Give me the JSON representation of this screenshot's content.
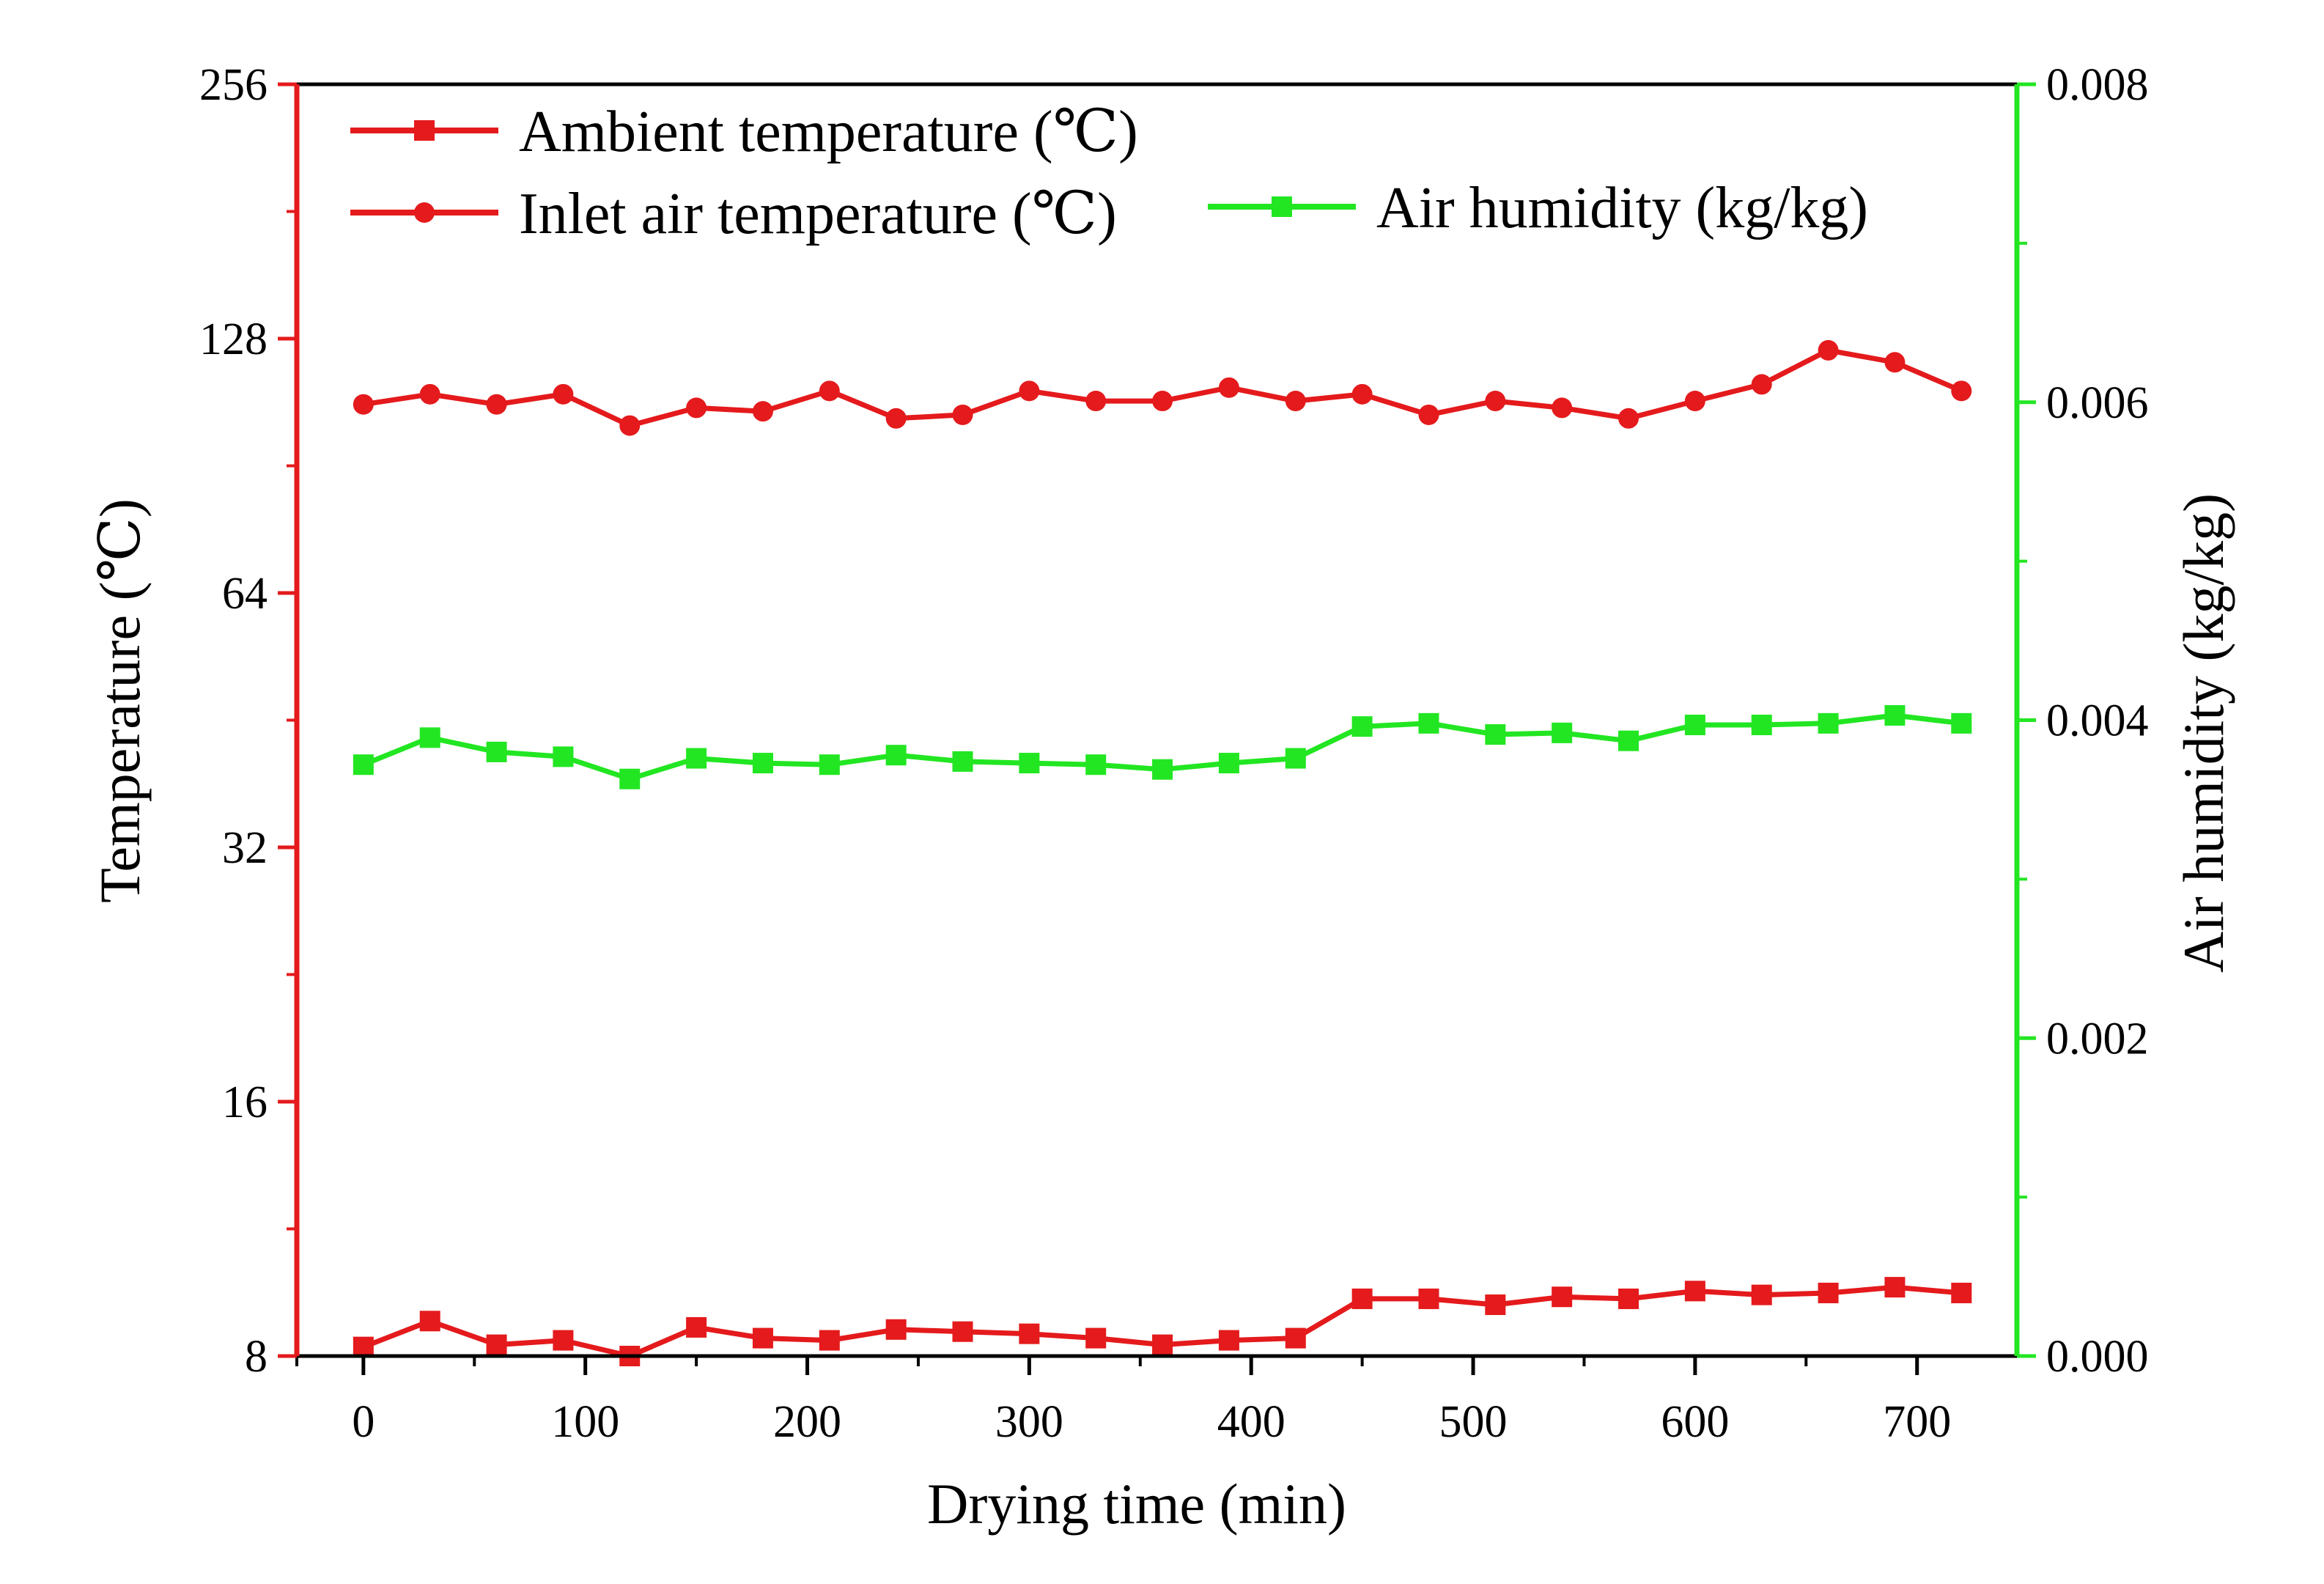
{
  "chart_data": {
    "type": "line",
    "xlabel": "Drying time (min)",
    "ylabel_left": "Temperature (℃)",
    "ylabel_right": "Air humidity (kg/kg)",
    "x_ticks": [
      0,
      100,
      200,
      300,
      400,
      500,
      600,
      700
    ],
    "x_tick_labels": [
      "0",
      "100",
      "200",
      "300",
      "400",
      "500",
      "600",
      "700"
    ],
    "xlim": [
      -30,
      745
    ],
    "left_axis": {
      "scale": "log2",
      "ylim": [
        8,
        256
      ],
      "ticks": [
        8,
        16,
        32,
        64,
        128,
        256
      ],
      "tick_labels": [
        "8",
        "16",
        "32",
        "64",
        "128",
        "256"
      ],
      "color": "#e41a1c"
    },
    "right_axis": {
      "scale": "linear",
      "ylim": [
        0,
        0.008
      ],
      "ticks": [
        0,
        0.002,
        0.004,
        0.006,
        0.008
      ],
      "tick_labels": [
        "0.000",
        "0.002",
        "0.004",
        "0.006",
        "0.008"
      ],
      "color": "#22e622"
    },
    "x": [
      0,
      30,
      60,
      90,
      120,
      150,
      180,
      210,
      240,
      270,
      300,
      330,
      360,
      390,
      420,
      450,
      480,
      510,
      540,
      570,
      600,
      630,
      660,
      690,
      720
    ],
    "series": [
      {
        "name": "Ambient temperature (℃)",
        "axis": "left",
        "marker": "square",
        "color": "#e41a1c",
        "values": [
          8.2,
          8.8,
          8.25,
          8.35,
          8.0,
          8.65,
          8.4,
          8.35,
          8.6,
          8.55,
          8.5,
          8.4,
          8.25,
          8.35,
          8.4,
          9.35,
          9.35,
          9.2,
          9.4,
          9.35,
          9.55,
          9.45,
          9.5,
          9.65,
          9.5
        ]
      },
      {
        "name": "Inlet air temperature (℃)",
        "axis": "left",
        "marker": "circle",
        "color": "#e41a1c",
        "values": [
          107,
          110,
          107,
          110,
          101,
          106,
          105,
          111,
          103,
          104,
          111,
          108,
          108,
          112,
          108,
          110,
          104,
          108,
          106,
          103,
          108,
          113,
          124,
          120,
          111
        ]
      },
      {
        "name": "Air humidity (kg/kg)",
        "axis": "right",
        "marker": "square",
        "color": "#22e622",
        "values": [
          0.00372,
          0.00389,
          0.0038,
          0.00377,
          0.00363,
          0.00376,
          0.00373,
          0.00372,
          0.00378,
          0.00374,
          0.00373,
          0.00372,
          0.00369,
          0.00373,
          0.00376,
          0.00396,
          0.00398,
          0.00391,
          0.00392,
          0.00387,
          0.00397,
          0.00397,
          0.00398,
          0.00403,
          0.00398
        ]
      }
    ]
  }
}
